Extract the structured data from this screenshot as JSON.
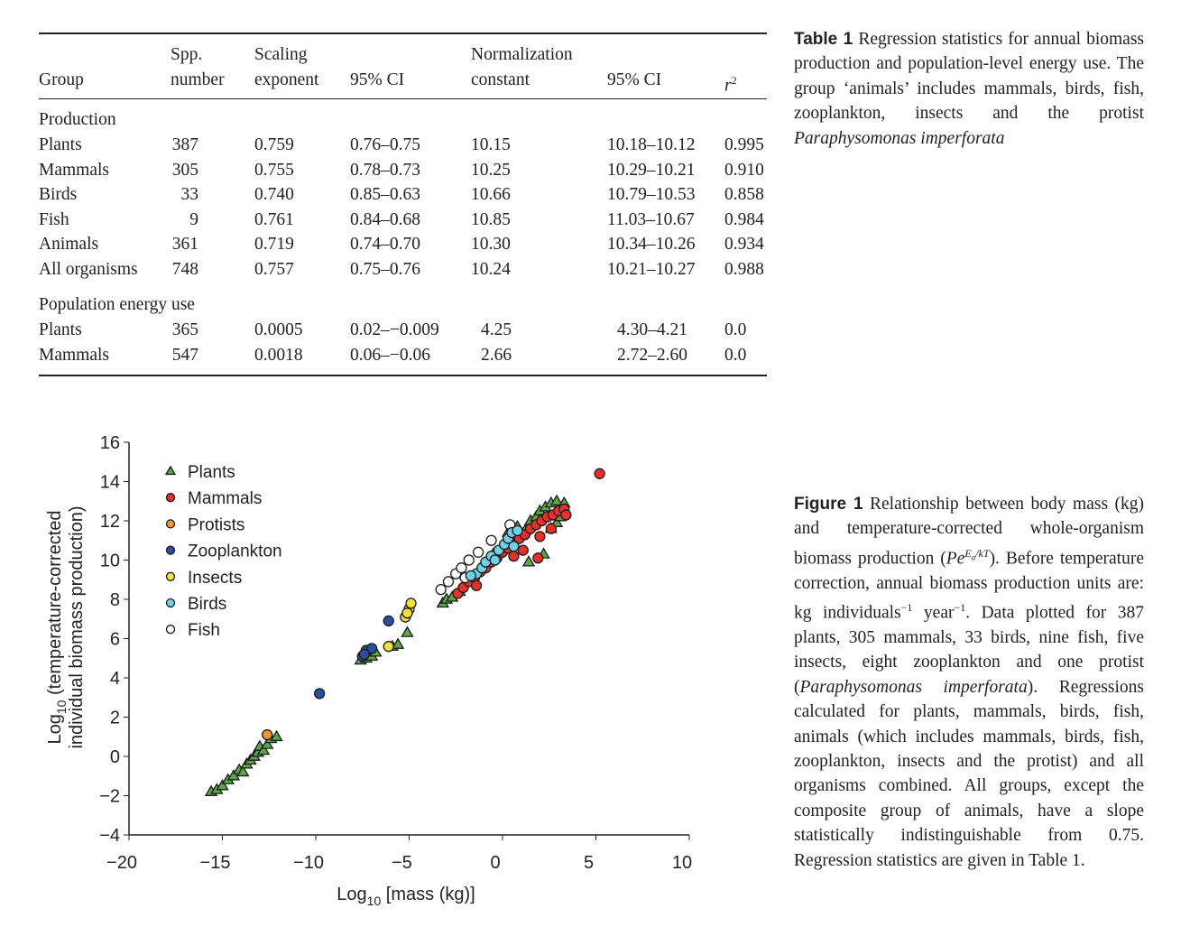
{
  "table": {
    "caption_label": "Table 1",
    "caption_text": "Regression statistics for annual biomass production and population-level energy use. The group ‘animals’ includes mammals, birds, fish, zooplankton, insects and the protist ",
    "caption_italic": "Paraphysomonas imperforata",
    "headers": {
      "group": "Group",
      "spp_1": "Spp.",
      "spp_2": "number",
      "scaling_1": "Scaling",
      "scaling_2": "exponent",
      "ci1": "95% CI",
      "norm_1": "Normalization",
      "norm_2": "constant",
      "ci2": "95% CI",
      "r2": "r"
    },
    "sections": [
      {
        "title": "Production",
        "rows": [
          [
            "Plants",
            "387",
            "0.759",
            "0.76–0.75",
            "10.15",
            "10.18–10.12",
            "0.995"
          ],
          [
            "Mammals",
            "305",
            "0.755",
            "0.78–0.73",
            "10.25",
            "10.29–10.21",
            "0.910"
          ],
          [
            "Birds",
            "33",
            "0.740",
            "0.85–0.63",
            "10.66",
            "10.79–10.53",
            "0.858"
          ],
          [
            "Fish",
            "9",
            "0.761",
            "0.84–0.68",
            "10.85",
            "11.03–10.67",
            "0.984"
          ],
          [
            "Animals",
            "361",
            "0.719",
            "0.74–0.70",
            "10.30",
            "10.34–10.26",
            "0.934"
          ],
          [
            "All organisms",
            "748",
            "0.757",
            "0.75–0.76",
            "10.24",
            "10.21–10.27",
            "0.988"
          ]
        ]
      },
      {
        "title": "Population energy use",
        "rows": [
          [
            "Plants",
            "365",
            "0.0005",
            "0.02–−0.009",
            "4.25",
            "4.30–4.21",
            "0.0"
          ],
          [
            "Mammals",
            "547",
            "0.0018",
            "0.06–−0.06",
            "2.66",
            "2.72–2.60",
            "0.0"
          ]
        ]
      }
    ]
  },
  "figure": {
    "caption_label": "Figure 1",
    "caption_parts": [
      " Relationship between body mass (kg) and temperature-corrected whole-organism biomass production (",
      "Pe",
      "E",
      "a",
      "/kT",
      "). Before temperature correction, annual biomass production units are: kg individuals",
      "−1",
      " year",
      "−1",
      ". Data plotted for 387 plants, 305 mammals, 33 birds, nine fish, five insects, eight zooplankton and one protist (",
      "Paraphysomonas imperforata",
      "). Regressions calculated for plants, mammals, birds, fish, animals (which includes mammals, birds, fish, zooplankton, insects and the protist) and all organisms combined. All groups, except the composite group of animals, have a slope statistically indistinguishable from 0.75. Regression statistics are given in Table 1."
    ]
  },
  "chart_data": {
    "type": "scatter",
    "xlabel": "Log10 [mass (kg)]",
    "xlabel_parts": [
      "Log",
      "10",
      " [mass (kg)]"
    ],
    "ylabel_line1_parts": [
      "Log",
      "10",
      " (temperature-corrected"
    ],
    "ylabel_line2": "individual biomass production)",
    "xlim": [
      -20,
      10
    ],
    "ylim": [
      -4,
      16
    ],
    "xticks": [
      "−20",
      "−15",
      "−10",
      "−5",
      "0",
      "5",
      "10"
    ],
    "yticks": [
      "−4",
      "−2",
      "0",
      "2",
      "4",
      "6",
      "8",
      "10",
      "12",
      "14",
      "16"
    ],
    "grid": false,
    "legend_position": "top-left",
    "series": [
      {
        "name": "Plants",
        "marker": "triangle",
        "color": "#5aa845",
        "points": [
          [
            -15.6,
            -1.8
          ],
          [
            -15.3,
            -1.7
          ],
          [
            -15.0,
            -1.5
          ],
          [
            -14.7,
            -1.2
          ],
          [
            -14.4,
            -1.0
          ],
          [
            -14.1,
            -0.7
          ],
          [
            -13.9,
            -0.8
          ],
          [
            -13.7,
            -0.4
          ],
          [
            -13.5,
            -0.2
          ],
          [
            -13.3,
            0.0
          ],
          [
            -13.1,
            0.2
          ],
          [
            -13.0,
            0.5
          ],
          [
            -12.8,
            0.3
          ],
          [
            -12.6,
            0.6
          ],
          [
            -12.4,
            0.9
          ],
          [
            -12.1,
            1.0
          ],
          [
            -7.6,
            4.9
          ],
          [
            -7.3,
            5.0
          ],
          [
            -7.0,
            5.1
          ],
          [
            -6.8,
            5.3
          ],
          [
            -5.9,
            5.6
          ],
          [
            -5.6,
            5.7
          ],
          [
            -5.1,
            6.3
          ],
          [
            -3.2,
            7.8
          ],
          [
            -3.0,
            8.0
          ],
          [
            -2.7,
            8.1
          ],
          [
            -2.3,
            8.4
          ],
          [
            -1.0,
            9.8
          ],
          [
            -0.5,
            10.3
          ],
          [
            0.3,
            11.4
          ],
          [
            0.8,
            11.7
          ],
          [
            1.2,
            11.5
          ],
          [
            1.5,
            12.0
          ],
          [
            1.8,
            12.2
          ],
          [
            2.0,
            12.5
          ],
          [
            2.3,
            12.7
          ],
          [
            2.6,
            12.9
          ],
          [
            2.9,
            13.0
          ],
          [
            3.3,
            12.9
          ],
          [
            2.2,
            10.3
          ],
          [
            1.4,
            9.9
          ],
          [
            2.9,
            11.9
          ],
          [
            2.6,
            11.6
          ],
          [
            3.1,
            12.2
          ]
        ]
      },
      {
        "name": "Mammals",
        "marker": "circle",
        "color": "#e8302a",
        "points": [
          [
            -2.4,
            8.3
          ],
          [
            -2.1,
            8.6
          ],
          [
            -1.8,
            8.9
          ],
          [
            -1.5,
            9.1
          ],
          [
            -1.2,
            9.4
          ],
          [
            -0.9,
            9.6
          ],
          [
            -0.6,
            9.9
          ],
          [
            -0.3,
            10.1
          ],
          [
            0.0,
            10.4
          ],
          [
            0.3,
            10.6
          ],
          [
            0.6,
            10.9
          ],
          [
            0.9,
            11.1
          ],
          [
            1.2,
            11.3
          ],
          [
            1.5,
            11.6
          ],
          [
            1.8,
            11.8
          ],
          [
            2.1,
            12.0
          ],
          [
            2.4,
            12.2
          ],
          [
            2.7,
            12.3
          ],
          [
            3.0,
            12.5
          ],
          [
            3.3,
            12.6
          ],
          [
            3.4,
            12.3
          ],
          [
            1.9,
            10.1
          ],
          [
            1.1,
            10.5
          ],
          [
            2.0,
            11.2
          ],
          [
            -1.4,
            8.7
          ],
          [
            0.6,
            10.2
          ],
          [
            2.6,
            11.6
          ],
          [
            5.2,
            14.4
          ]
        ]
      },
      {
        "name": "Protists",
        "marker": "circle",
        "color": "#f0962e",
        "points": [
          [
            -12.6,
            1.1
          ]
        ]
      },
      {
        "name": "Zooplankton",
        "marker": "circle",
        "color": "#2a4ea0",
        "points": [
          [
            -9.8,
            3.2
          ],
          [
            -7.5,
            5.1
          ],
          [
            -7.3,
            5.4
          ],
          [
            -7.0,
            5.5
          ],
          [
            -7.4,
            5.2
          ],
          [
            -6.1,
            6.9
          ]
        ]
      },
      {
        "name": "Insects",
        "marker": "circle",
        "color": "#f4e23a",
        "points": [
          [
            -6.1,
            5.6
          ],
          [
            -5.2,
            7.1
          ],
          [
            -5.0,
            7.5
          ],
          [
            -4.9,
            7.8
          ],
          [
            -5.1,
            7.3
          ]
        ]
      },
      {
        "name": "Birds",
        "marker": "circle",
        "color": "#6fd0e6",
        "points": [
          [
            -1.4,
            9.3
          ],
          [
            -1.1,
            9.6
          ],
          [
            -0.9,
            9.9
          ],
          [
            -0.6,
            10.2
          ],
          [
            -0.4,
            10.0
          ],
          [
            -0.2,
            10.5
          ],
          [
            0.1,
            10.8
          ],
          [
            0.3,
            11.1
          ],
          [
            0.5,
            11.4
          ],
          [
            0.8,
            11.5
          ],
          [
            0.6,
            10.7
          ],
          [
            -1.7,
            9.2
          ]
        ]
      },
      {
        "name": "Fish",
        "marker": "circle",
        "color": "#ffffff",
        "points": [
          [
            -3.3,
            8.5
          ],
          [
            -2.9,
            8.9
          ],
          [
            -2.5,
            9.3
          ],
          [
            -2.2,
            9.6
          ],
          [
            -1.8,
            10.0
          ],
          [
            -1.3,
            10.4
          ],
          [
            -0.6,
            11.0
          ],
          [
            0.4,
            11.8
          ],
          [
            -2.0,
            9.1
          ]
        ]
      }
    ]
  }
}
